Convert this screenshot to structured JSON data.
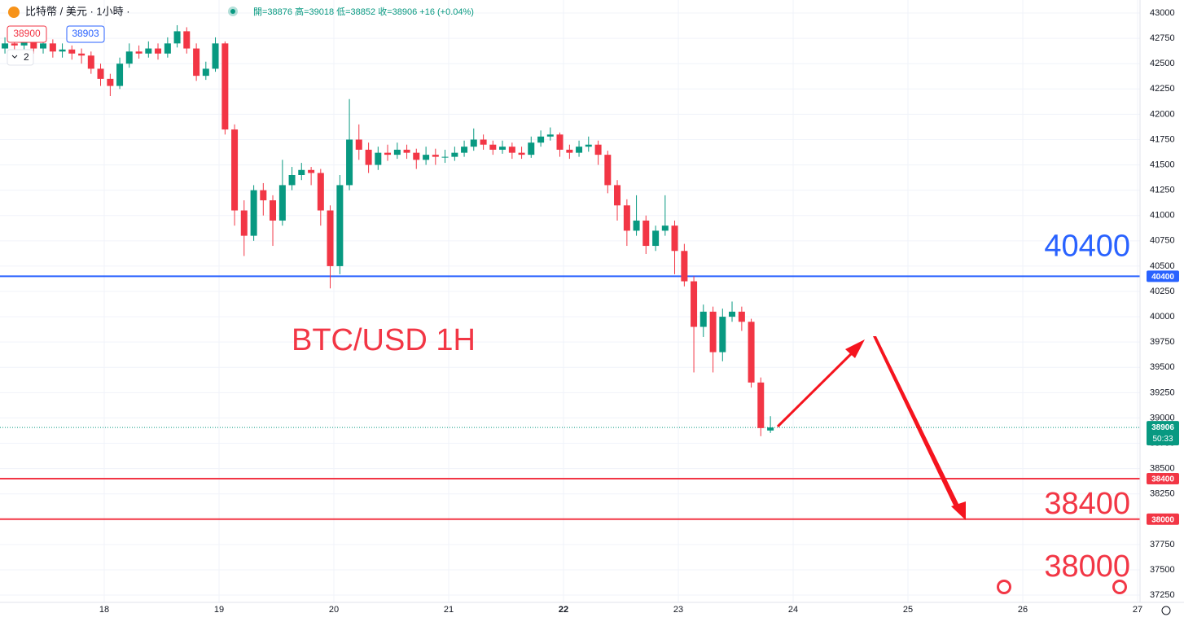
{
  "header": {
    "symbol": "比特幣 / 美元 · 1小時 ·",
    "ohlc": "開=38876  高=39018  低=38852  收=38906  +16 (+0.04%)",
    "bid": "38900",
    "ask": "38903",
    "indicators": "2"
  },
  "chart_data": {
    "type": "candlestick",
    "annotation": "BTC/USD 1H",
    "up_color": "#089981",
    "down_color": "#f23645",
    "xlim": [
      17.092,
      27.021
    ],
    "xticks": [
      18,
      19,
      20,
      21,
      22,
      23,
      24,
      25,
      26,
      27
    ],
    "ylim": [
      37178,
      43129
    ],
    "yticks": [
      37250,
      37500,
      37750,
      38000,
      38250,
      38500,
      38750,
      39000,
      39250,
      39500,
      39750,
      40000,
      40250,
      40500,
      40750,
      41000,
      41250,
      41500,
      41750,
      42000,
      42250,
      42500,
      42750,
      43000
    ],
    "grid": true,
    "x": [
      17.135,
      17.218,
      17.302,
      17.385,
      17.468,
      17.552,
      17.635,
      17.718,
      17.802,
      17.885,
      17.968,
      18.052,
      18.135,
      18.218,
      18.302,
      18.385,
      18.468,
      18.552,
      18.635,
      18.718,
      18.802,
      18.885,
      18.968,
      19.052,
      19.135,
      19.218,
      19.302,
      19.385,
      19.468,
      19.552,
      19.635,
      19.718,
      19.802,
      19.885,
      19.968,
      20.052,
      20.135,
      20.218,
      20.302,
      20.385,
      20.468,
      20.552,
      20.635,
      20.718,
      20.802,
      20.885,
      20.968,
      21.052,
      21.135,
      21.218,
      21.302,
      21.385,
      21.468,
      21.552,
      21.635,
      21.718,
      21.802,
      21.885,
      21.968,
      22.052,
      22.135,
      22.218,
      22.302,
      22.385,
      22.468,
      22.552,
      22.635,
      22.718,
      22.802,
      22.885,
      22.968,
      23.052,
      23.135,
      23.218,
      23.302,
      23.385,
      23.468,
      23.552,
      23.635,
      23.718,
      23.802
    ],
    "open": [
      42650,
      42700,
      42680,
      42720,
      42650,
      42700,
      42620,
      42640,
      42600,
      42580,
      42450,
      42350,
      42280,
      42500,
      42620,
      42600,
      42650,
      42600,
      42700,
      42820,
      42650,
      42380,
      42450,
      42700,
      41850,
      41050,
      40800,
      41250,
      41150,
      40950,
      41300,
      41400,
      41450,
      41420,
      41050,
      40500,
      41300,
      41750,
      41650,
      41500,
      41620,
      41600,
      41650,
      41620,
      41550,
      41600,
      41580,
      41580,
      41620,
      41680,
      41750,
      41700,
      41650,
      41680,
      41620,
      41600,
      41720,
      41780,
      41800,
      41650,
      41620,
      41680,
      41700,
      41600,
      41300,
      41100,
      40850,
      40950,
      40700,
      40850,
      40900,
      40650,
      40350,
      39900,
      40050,
      39650,
      40000,
      40050,
      39950,
      39350,
      38876
    ],
    "high": [
      42760,
      42750,
      42780,
      42760,
      42750,
      42740,
      42700,
      42680,
      42650,
      42620,
      42500,
      42400,
      42560,
      42700,
      42680,
      42720,
      42700,
      42760,
      42880,
      42860,
      42700,
      42520,
      42760,
      42720,
      41900,
      41150,
      41300,
      41320,
      41200,
      41550,
      41480,
      41520,
      41480,
      41460,
      41100,
      41400,
      42150,
      41900,
      41720,
      41680,
      41700,
      41720,
      41700,
      41660,
      41680,
      41660,
      41650,
      41680,
      41740,
      41860,
      41800,
      41740,
      41740,
      41720,
      41680,
      41780,
      41840,
      41870,
      41820,
      41700,
      41740,
      41780,
      41740,
      41640,
      41350,
      41160,
      41200,
      41000,
      40900,
      41200,
      40950,
      40720,
      40400,
      40120,
      40100,
      40080,
      40150,
      40100,
      39980,
      39400,
      39018
    ],
    "low": [
      42600,
      42620,
      42640,
      42600,
      42600,
      42560,
      42560,
      42540,
      42500,
      42400,
      42280,
      42180,
      42250,
      42460,
      42550,
      42560,
      42540,
      42560,
      42660,
      42600,
      42330,
      42340,
      42420,
      41800,
      40900,
      40600,
      40750,
      41000,
      40700,
      40900,
      41250,
      41350,
      41300,
      40900,
      40280,
      40420,
      41250,
      41550,
      41420,
      41450,
      41540,
      41560,
      41560,
      41460,
      41500,
      41500,
      41520,
      41540,
      41580,
      41640,
      41650,
      41600,
      41610,
      41560,
      41560,
      41570,
      41680,
      41740,
      41580,
      41560,
      41580,
      41630,
      41500,
      41220,
      40950,
      40700,
      40800,
      40620,
      40650,
      40800,
      40420,
      40300,
      39450,
      39800,
      39450,
      39560,
      39950,
      39860,
      39300,
      38820,
      38852
    ],
    "close": [
      42700,
      42680,
      42720,
      42650,
      42700,
      42620,
      42640,
      42600,
      42580,
      42450,
      42350,
      42280,
      42500,
      42620,
      42600,
      42650,
      42600,
      42700,
      42820,
      42650,
      42380,
      42450,
      42700,
      41850,
      41050,
      40800,
      41250,
      41150,
      40950,
      41300,
      41400,
      41450,
      41420,
      41050,
      40500,
      41300,
      41750,
      41650,
      41500,
      41620,
      41600,
      41650,
      41620,
      41550,
      41600,
      41580,
      41580,
      41620,
      41680,
      41750,
      41700,
      41650,
      41680,
      41620,
      41600,
      41720,
      41780,
      41800,
      41650,
      41620,
      41680,
      41700,
      41600,
      41300,
      41100,
      40850,
      40950,
      40700,
      40850,
      40900,
      40650,
      40350,
      39900,
      40050,
      39650,
      40000,
      40050,
      39950,
      39350,
      38900,
      38906
    ],
    "last_price": 38906,
    "countdown": "50:33",
    "levels": [
      {
        "value": 40400,
        "color": "#2962ff"
      },
      {
        "value": 38400,
        "color": "#f23645"
      },
      {
        "value": 38000,
        "color": "#f23645"
      }
    ]
  }
}
